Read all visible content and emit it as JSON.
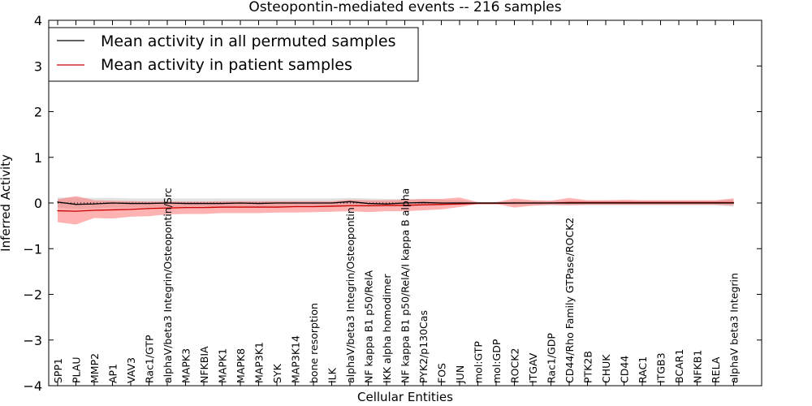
{
  "chart_data": {
    "type": "line",
    "title": "Osteopontin-mediated events -- 216 samples",
    "xlabel": "Cellular Entities",
    "ylabel": "Inferred Activity",
    "ylim": [
      -4,
      4
    ],
    "yticks": [
      "4",
      "3",
      "2",
      "1",
      "0",
      "−1",
      "−2",
      "−3",
      "−4"
    ],
    "ytick_values": [
      4,
      3,
      2,
      1,
      0,
      -1,
      -2,
      -3,
      -4
    ],
    "grid": false,
    "legend_position": "top-left",
    "colors": {
      "permuted_line": "#000000",
      "patient_line": "#cc0000",
      "permuted_band": "#c8c8c8",
      "patient_band": "#ff6666"
    },
    "categories": [
      "SPP1",
      "PLAU",
      "MMP2",
      "AP1",
      "VAV3",
      "Rac1/GTP",
      "alphaV/beta3 Integrin/Osteopontin/Src",
      "MAPK3",
      "NFKBIA",
      "MAPK1",
      "MAPK8",
      "MAP3K1",
      "SYK",
      "MAP3K14",
      "bone resorption",
      "ILK",
      "alphaV/beta3 Integrin/Osteopontin",
      "NF kappa B1 p50/RelA",
      "IKK alpha homodimer",
      "NF kappa B1 p50/RelA/I kappa B alpha",
      "PYK2/p130Cas",
      "FOS",
      "JUN",
      "mol:GTP",
      "mol:GDP",
      "ROCK2",
      "ITGAV",
      "Rac1/GDP",
      "CD44/Rho Family GTPase/ROCK2",
      "PTK2B",
      "CHUK",
      "CD44",
      "RAC1",
      "ITGB3",
      "BCAR1",
      "NFKB1",
      "RELA",
      "alphaV beta3 Integrin"
    ],
    "series": [
      {
        "name": "Mean activity in all permuted samples",
        "values": [
          0.02,
          -0.03,
          -0.02,
          0.0,
          -0.01,
          -0.01,
          0.0,
          -0.01,
          -0.01,
          -0.01,
          0.0,
          -0.01,
          0.0,
          0.0,
          0.0,
          0.0,
          0.03,
          -0.01,
          -0.02,
          0.0,
          0.01,
          0.0,
          0.0,
          0.0,
          0.0,
          0.0,
          0.0,
          0.0,
          0.0,
          0.0,
          0.0,
          0.0,
          0.0,
          0.0,
          0.0,
          0.0,
          0.0,
          0.0
        ],
        "band_low": [
          -0.1,
          -0.13,
          -0.12,
          -0.1,
          -0.1,
          -0.1,
          -0.09,
          -0.09,
          -0.1,
          -0.09,
          -0.09,
          -0.09,
          -0.09,
          -0.09,
          -0.09,
          -0.09,
          -0.08,
          -0.09,
          -0.09,
          -0.08,
          -0.07,
          -0.06,
          -0.05,
          -0.01,
          -0.01,
          -0.05,
          -0.05,
          -0.05,
          -0.05,
          -0.05,
          -0.05,
          -0.05,
          -0.05,
          -0.05,
          -0.05,
          -0.05,
          -0.05,
          -0.08
        ],
        "band_high": [
          0.12,
          0.12,
          0.11,
          0.11,
          0.1,
          0.1,
          0.1,
          0.1,
          0.1,
          0.1,
          0.1,
          0.1,
          0.1,
          0.1,
          0.1,
          0.1,
          0.11,
          0.1,
          0.09,
          0.09,
          0.08,
          0.07,
          0.06,
          0.01,
          0.01,
          0.05,
          0.05,
          0.05,
          0.05,
          0.05,
          0.05,
          0.05,
          0.05,
          0.05,
          0.05,
          0.05,
          0.05,
          0.08
        ]
      },
      {
        "name": "Mean activity in patient samples",
        "values": [
          -0.17,
          -0.18,
          -0.16,
          -0.15,
          -0.14,
          -0.12,
          -0.11,
          -0.1,
          -0.1,
          -0.09,
          -0.09,
          -0.09,
          -0.09,
          -0.08,
          -0.08,
          -0.07,
          -0.06,
          -0.06,
          -0.05,
          -0.05,
          -0.04,
          -0.03,
          -0.02,
          -0.01,
          -0.01,
          0.0,
          0.0,
          0.0,
          0.01,
          0.01,
          0.01,
          0.01,
          0.01,
          0.01,
          0.01,
          0.01,
          0.01,
          0.01
        ],
        "band_low": [
          -0.42,
          -0.47,
          -0.33,
          -0.34,
          -0.3,
          -0.29,
          -0.25,
          -0.24,
          -0.24,
          -0.22,
          -0.22,
          -0.22,
          -0.21,
          -0.21,
          -0.2,
          -0.19,
          -0.18,
          -0.2,
          -0.18,
          -0.18,
          -0.16,
          -0.14,
          -0.09,
          -0.02,
          -0.02,
          -0.1,
          -0.06,
          -0.04,
          -0.05,
          -0.04,
          -0.04,
          -0.04,
          -0.04,
          -0.04,
          -0.04,
          -0.04,
          -0.04,
          -0.05
        ],
        "band_high": [
          0.08,
          0.15,
          0.06,
          0.05,
          0.04,
          0.03,
          0.03,
          0.03,
          0.03,
          0.04,
          0.04,
          0.04,
          0.04,
          0.04,
          0.04,
          0.04,
          0.07,
          0.06,
          0.06,
          0.07,
          0.09,
          0.09,
          0.12,
          0.02,
          0.02,
          0.1,
          0.06,
          0.05,
          0.11,
          0.06,
          0.06,
          0.07,
          0.06,
          0.06,
          0.06,
          0.06,
          0.06,
          0.1
        ]
      }
    ]
  }
}
